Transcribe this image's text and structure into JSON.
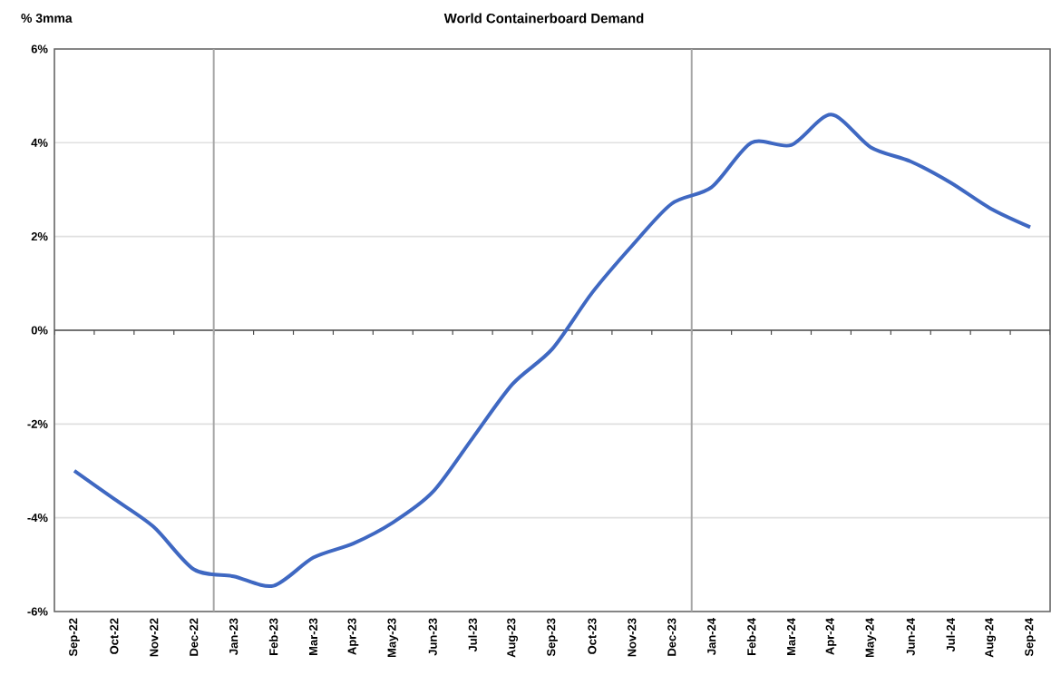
{
  "chart_data": {
    "type": "line",
    "title": "World Containerboard Demand",
    "ylabel": "% 3mma",
    "categories": [
      "Sep-22",
      "Oct-22",
      "Nov-22",
      "Dec-22",
      "Jan-23",
      "Feb-23",
      "Mar-23",
      "Apr-23",
      "May-23",
      "Jun-23",
      "Jul-23",
      "Aug-23",
      "Sep-23",
      "Oct-23",
      "Nov-23",
      "Dec-23",
      "Jan-24",
      "Feb-24",
      "Mar-24",
      "Apr-24",
      "May-24",
      "Jun-24",
      "Jul-24",
      "Aug-24",
      "Sep-24"
    ],
    "series": [
      {
        "color": "#3f68c2",
        "values": [
          -3.0,
          -3.6,
          -4.2,
          -5.1,
          -5.25,
          -5.45,
          -4.85,
          -4.55,
          -4.1,
          -3.45,
          -2.3,
          -1.15,
          -0.4,
          0.8,
          1.8,
          2.7,
          3.05,
          4.0,
          3.95,
          4.6,
          3.9,
          3.6,
          3.15,
          2.6,
          2.2
        ]
      }
    ],
    "ylim": [
      -6,
      6
    ],
    "yticks": [
      {
        "value": -6,
        "label": "-6%"
      },
      {
        "value": -4,
        "label": "-4%"
      },
      {
        "value": -2,
        "label": "-2%"
      },
      {
        "value": 0,
        "label": "0%"
      },
      {
        "value": 2,
        "label": "2%"
      },
      {
        "value": 4,
        "label": "4%"
      },
      {
        "value": 6,
        "label": "6%"
      }
    ],
    "grid": "y",
    "marker": "none",
    "line_style": "solid"
  }
}
